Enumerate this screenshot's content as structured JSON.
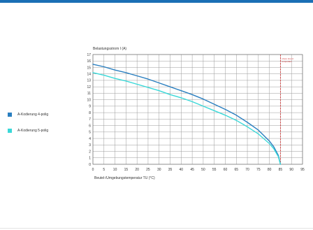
{
  "colors": {
    "header": "#1a6fb5",
    "series1": "#2a7fc0",
    "series2": "#3ad8d8",
    "limit": "#d33a3a",
    "grid": "#9a9a9a"
  },
  "chart_data": {
    "type": "line",
    "ylabel": "Belastungsstrom I (A)",
    "xlabel": "Beutel-/Umgebungstemperatur TU (°C)",
    "xlim": [
      0,
      95
    ],
    "ylim": [
      0,
      17
    ],
    "xticks": [
      0,
      5,
      10,
      15,
      20,
      25,
      30,
      35,
      40,
      45,
      50,
      55,
      60,
      65,
      70,
      75,
      80,
      85,
      90,
      95
    ],
    "yticks": [
      0,
      1,
      2,
      3,
      4,
      5,
      6,
      7,
      8,
      9,
      10,
      11,
      12,
      13,
      14,
      15,
      16,
      17
    ],
    "grid": true,
    "legend_position": "left",
    "limit_line": {
      "x": 85,
      "label": "obere Grenz-temperatur"
    },
    "series": [
      {
        "name": "A-Kodierung 4-polig",
        "x": [
          0,
          5,
          10,
          15,
          20,
          25,
          30,
          35,
          40,
          45,
          50,
          55,
          60,
          65,
          70,
          75,
          80,
          82,
          84,
          85
        ],
        "values": [
          15.5,
          15.1,
          14.6,
          14.2,
          13.7,
          13.2,
          12.6,
          12.0,
          11.4,
          10.8,
          10.1,
          9.3,
          8.5,
          7.6,
          6.5,
          5.3,
          3.6,
          2.7,
          1.4,
          0
        ]
      },
      {
        "name": "A-Kodierung 5-polig",
        "x": [
          0,
          5,
          10,
          15,
          20,
          25,
          30,
          35,
          40,
          45,
          50,
          55,
          60,
          65,
          70,
          75,
          80,
          82,
          84,
          85
        ],
        "values": [
          14.2,
          13.8,
          13.3,
          12.9,
          12.4,
          11.9,
          11.4,
          10.8,
          10.3,
          9.7,
          9.0,
          8.3,
          7.6,
          6.8,
          5.8,
          4.7,
          3.2,
          2.4,
          1.2,
          0
        ]
      }
    ]
  }
}
